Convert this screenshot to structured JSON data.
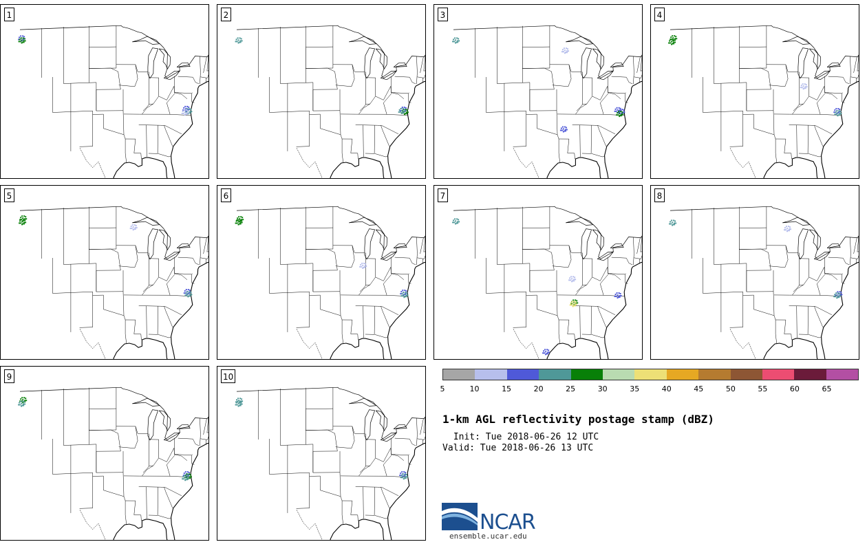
{
  "colors": {
    "boundary": "#000000",
    "scale": [
      "#a6a6a6",
      "#b7bfec",
      "#4f59d8",
      "#4f9898",
      "#088008",
      "#b9dbb1",
      "#ede076",
      "#e6a823",
      "#b57b30",
      "#8d5634",
      "#ec4d72",
      "#6b1b3a",
      "#b34fa3"
    ],
    "logo_blue": "#1c4f8f"
  },
  "panels": [
    {
      "label": "1",
      "echoes": [
        {
          "lon": -122.8,
          "lat": 47.9,
          "c": "#4f59d8"
        },
        {
          "lon": -122.7,
          "lat": 47.6,
          "c": "#088008"
        },
        {
          "lon": -77.5,
          "lat": 37.6,
          "c": "#4f59d8"
        },
        {
          "lon": -76.9,
          "lat": 37.3,
          "c": "#4f9898"
        },
        {
          "lon": -77.8,
          "lat": 37.1,
          "c": "#b7bfec"
        }
      ]
    },
    {
      "label": "2",
      "echoes": [
        {
          "lon": -122.7,
          "lat": 47.6,
          "c": "#4f9898"
        },
        {
          "lon": -77.4,
          "lat": 37.5,
          "c": "#4f59d8"
        },
        {
          "lon": -77.0,
          "lat": 37.2,
          "c": "#088008"
        },
        {
          "lon": -77.8,
          "lat": 37.3,
          "c": "#4f9898"
        }
      ]
    },
    {
      "label": "3",
      "echoes": [
        {
          "lon": -122.6,
          "lat": 47.6,
          "c": "#4f9898"
        },
        {
          "lon": -92.5,
          "lat": 45.6,
          "c": "#b7bfec"
        },
        {
          "lon": -78.0,
          "lat": 37.4,
          "c": "#4f59d8"
        },
        {
          "lon": -77.1,
          "lat": 37.2,
          "c": "#4f59d8"
        },
        {
          "lon": -77.5,
          "lat": 36.9,
          "c": "#088008"
        },
        {
          "lon": -92.9,
          "lat": 34.5,
          "c": "#4f59d8"
        }
      ]
    },
    {
      "label": "4",
      "echoes": [
        {
          "lon": -122.4,
          "lat": 47.9,
          "c": "#088008"
        },
        {
          "lon": -122.8,
          "lat": 47.4,
          "c": "#088008"
        },
        {
          "lon": -86.5,
          "lat": 40.6,
          "c": "#b7bfec"
        },
        {
          "lon": -77.3,
          "lat": 37.3,
          "c": "#4f59d8"
        },
        {
          "lon": -77.1,
          "lat": 37.0,
          "c": "#4f9898"
        }
      ]
    },
    {
      "label": "5",
      "echoes": [
        {
          "lon": -122.4,
          "lat": 48.0,
          "c": "#088008"
        },
        {
          "lon": -122.6,
          "lat": 47.5,
          "c": "#088008"
        },
        {
          "lon": -92.0,
          "lat": 46.2,
          "c": "#b7bfec"
        },
        {
          "lon": -77.2,
          "lat": 37.3,
          "c": "#4f59d8"
        },
        {
          "lon": -76.9,
          "lat": 37.0,
          "c": "#4f9898"
        }
      ]
    },
    {
      "label": "6",
      "echoes": [
        {
          "lon": -122.4,
          "lat": 47.9,
          "c": "#088008"
        },
        {
          "lon": -122.7,
          "lat": 47.5,
          "c": "#088008"
        },
        {
          "lon": -88.5,
          "lat": 40.8,
          "c": "#b7bfec"
        },
        {
          "lon": -77.3,
          "lat": 37.2,
          "c": "#4f59d8"
        },
        {
          "lon": -77.1,
          "lat": 36.9,
          "c": "#4f9898"
        }
      ]
    },
    {
      "label": "7",
      "echoes": [
        {
          "lon": -122.6,
          "lat": 47.6,
          "c": "#4f9898"
        },
        {
          "lon": -90.6,
          "lat": 38.9,
          "c": "#b7bfec"
        },
        {
          "lon": -90.0,
          "lat": 35.6,
          "c": "#088008"
        },
        {
          "lon": -90.3,
          "lat": 35.4,
          "c": "#ede076"
        },
        {
          "lon": -78.0,
          "lat": 36.8,
          "c": "#4f59d8"
        },
        {
          "lon": -97.8,
          "lat": 28.6,
          "c": "#4f59d8"
        }
      ]
    },
    {
      "label": "8",
      "echoes": [
        {
          "lon": -122.6,
          "lat": 47.4,
          "c": "#4f9898"
        },
        {
          "lon": -91.0,
          "lat": 46.0,
          "c": "#b7bfec"
        },
        {
          "lon": -76.9,
          "lat": 37.0,
          "c": "#4f59d8"
        },
        {
          "lon": -77.3,
          "lat": 36.8,
          "c": "#4f9898"
        }
      ]
    },
    {
      "label": "9",
      "echoes": [
        {
          "lon": -122.4,
          "lat": 47.9,
          "c": "#088008"
        },
        {
          "lon": -122.8,
          "lat": 47.4,
          "c": "#4f9898"
        },
        {
          "lon": -77.4,
          "lat": 37.1,
          "c": "#4f59d8"
        },
        {
          "lon": -77.0,
          "lat": 36.8,
          "c": "#088008"
        },
        {
          "lon": -77.7,
          "lat": 36.6,
          "c": "#4f9898"
        }
      ]
    },
    {
      "label": "10",
      "echoes": [
        {
          "lon": -122.6,
          "lat": 47.8,
          "c": "#4f9898"
        },
        {
          "lon": -122.7,
          "lat": 47.4,
          "c": "#4f9898"
        },
        {
          "lon": -77.5,
          "lat": 37.1,
          "c": "#4f59d8"
        },
        {
          "lon": -77.2,
          "lat": 36.8,
          "c": "#4f9898"
        }
      ]
    }
  ],
  "legend": {
    "ticks": [
      "5",
      "10",
      "15",
      "20",
      "25",
      "30",
      "35",
      "40",
      "45",
      "50",
      "55",
      "60",
      "65"
    ],
    "title": "1-km AGL reflectivity postage stamp (dBZ)",
    "init": " Init: Tue 2018-06-26 12 UTC",
    "valid": "Valid: Tue 2018-06-26 13 UTC"
  },
  "logo": {
    "name": "NCAR",
    "url": "ensemble.ucar.edu"
  }
}
